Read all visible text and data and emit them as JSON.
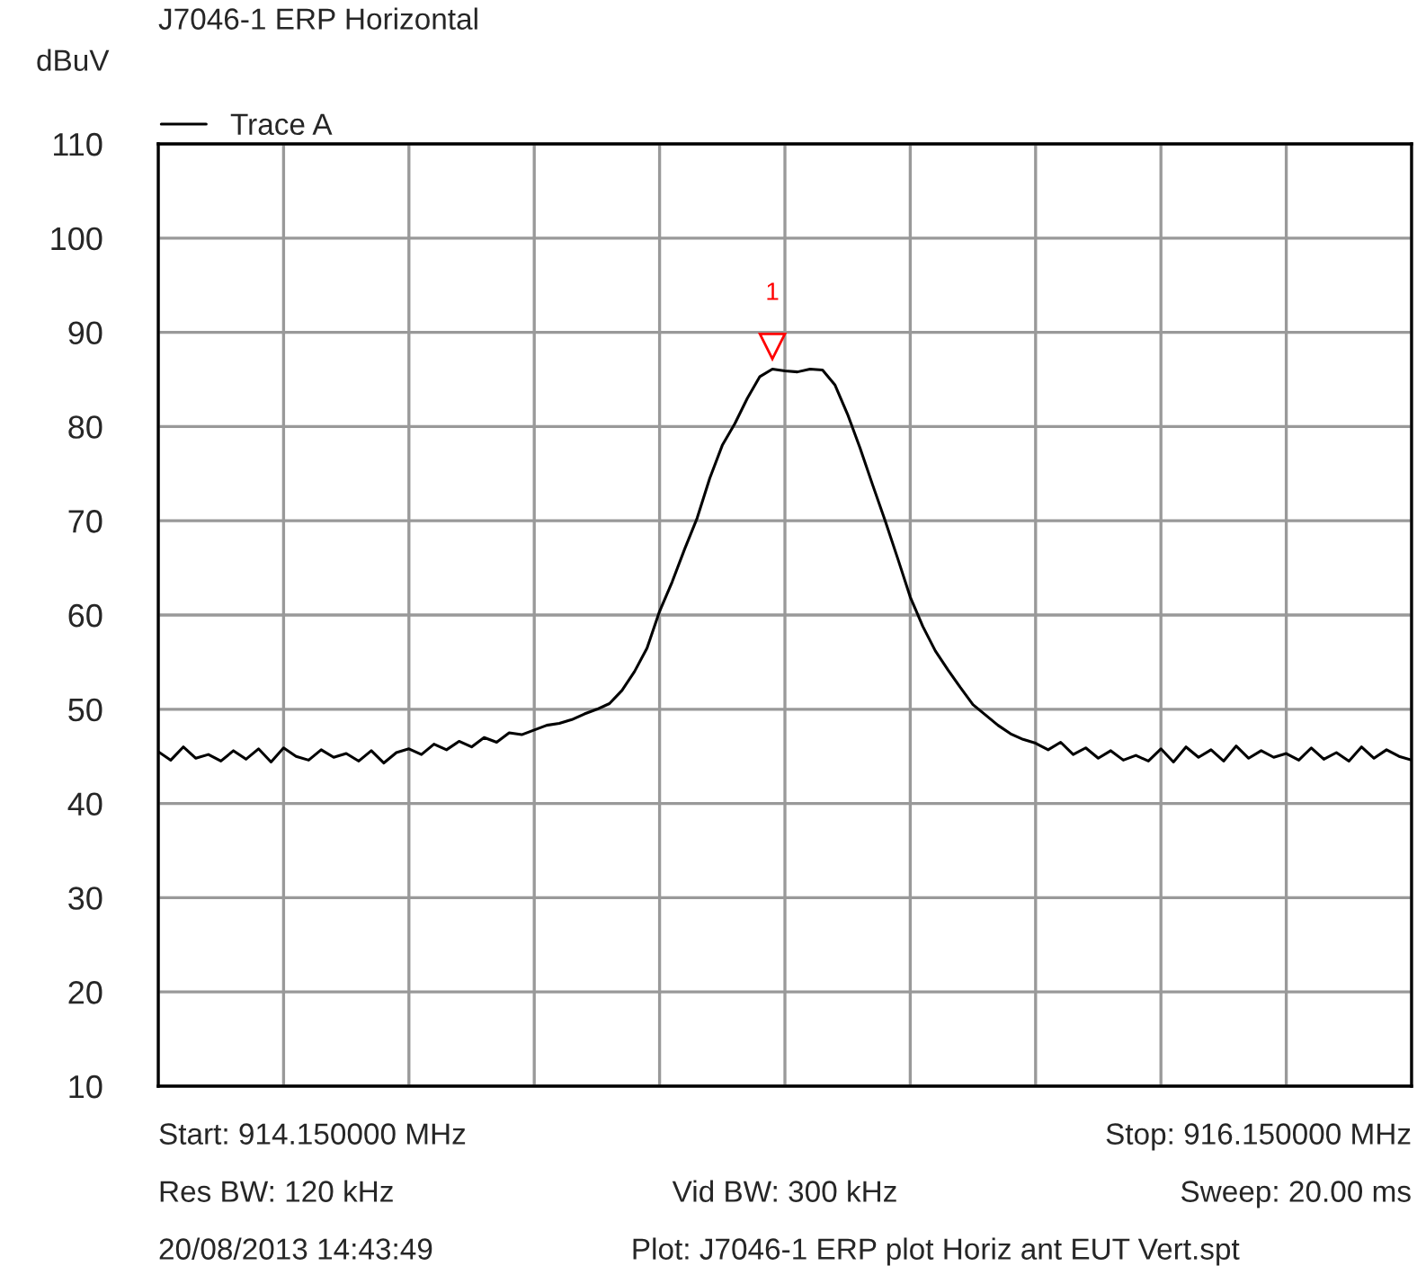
{
  "chart_data": {
    "type": "line",
    "title": "J7046-1 ERP Horizontal",
    "ylabel": "dBuV",
    "categories": [
      null,
      null,
      null,
      null,
      null,
      null,
      null,
      null,
      null,
      null,
      null,
      null,
      null,
      null,
      null,
      null,
      null,
      null,
      null,
      null,
      null,
      null,
      null,
      null,
      null,
      null,
      null,
      null,
      null,
      null,
      null,
      null,
      null,
      null,
      null,
      null,
      null,
      null,
      null,
      null,
      null,
      null,
      null,
      null,
      null,
      null,
      null,
      null,
      null,
      null,
      null,
      null,
      null,
      null,
      null,
      null,
      null,
      null,
      null,
      null,
      null,
      null,
      null,
      null,
      null,
      null,
      null,
      null,
      null,
      null,
      null,
      null,
      null,
      null,
      null,
      null,
      null,
      null,
      null,
      null,
      null,
      null,
      null,
      null,
      null,
      null,
      null,
      null,
      null,
      null,
      null,
      null,
      null,
      null,
      null,
      null,
      null,
      null,
      null,
      null,
      null
    ],
    "series": [
      {
        "name": "Trace A",
        "color": "#000000",
        "values": [
          45.5,
          44.6,
          46.0,
          44.8,
          45.2,
          44.5,
          45.6,
          44.7,
          45.8,
          44.4,
          45.9,
          45.0,
          44.6,
          45.7,
          44.9,
          45.3,
          44.5,
          45.6,
          44.3,
          45.4,
          45.8,
          45.2,
          46.3,
          45.7,
          46.6,
          46.0,
          47.0,
          46.5,
          47.5,
          47.3,
          47.8,
          48.3,
          48.5,
          48.9,
          49.5,
          50.0,
          50.6,
          52.0,
          54.0,
          56.5,
          60.4,
          63.5,
          67.0,
          70.3,
          74.5,
          78.0,
          80.3,
          83.0,
          85.3,
          86.1,
          85.9,
          85.8,
          86.1,
          86.0,
          84.4,
          81.3,
          77.7,
          73.8,
          70.0,
          66.0,
          61.9,
          58.8,
          56.2,
          54.2,
          52.3,
          50.5,
          49.4,
          48.3,
          47.4,
          46.8,
          46.4,
          45.7,
          46.5,
          45.2,
          45.9,
          44.8,
          45.6,
          44.6,
          45.1,
          44.5,
          45.8,
          44.4,
          46.0,
          44.9,
          45.7,
          44.5,
          46.1,
          44.8,
          45.6,
          44.9,
          45.3,
          44.6,
          45.9,
          44.7,
          45.4,
          44.5,
          46.0,
          44.8,
          45.7,
          45.0,
          44.6
        ]
      }
    ],
    "ylim": [
      10,
      110
    ],
    "yticks": [
      10,
      20,
      30,
      40,
      50,
      60,
      70,
      80,
      90,
      100,
      110
    ],
    "tick_labels": "y",
    "grid": true,
    "legend": "top left",
    "marker": "none",
    "line_style": "solid",
    "annotations": [
      {
        "text": "1",
        "y": 86
      },
      "Start: 914.150000 MHz",
      "Stop: 916.150000 MHz",
      "Res BW: 120 kHz",
      "Vid BW: 300 kHz",
      "Sweep: 20.00 ms",
      "20/08/2013 14:43:49",
      "Plot: J7046-1 ERP plot Horiz ant EUT Vert.spt"
    ]
  }
}
